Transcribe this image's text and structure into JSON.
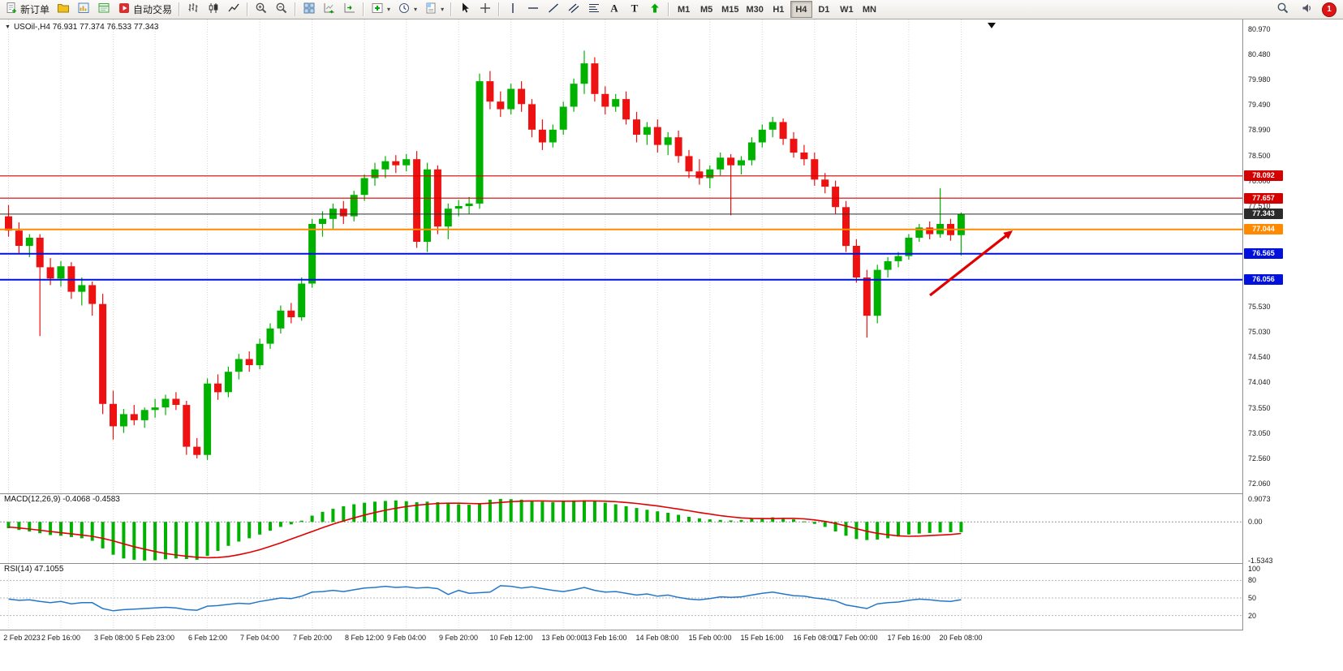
{
  "toolbar": {
    "new_order_label": "新订单",
    "auto_trading_label": "自动交易",
    "timeframes": [
      "M1",
      "M5",
      "M15",
      "M30",
      "H1",
      "H4",
      "D1",
      "W1",
      "MN"
    ],
    "active_timeframe": "H4",
    "notification_badge": "1"
  },
  "chart": {
    "title": "USOil-,H4  76.931 77.374 76.533 77.343",
    "price_axis_max": 80.97,
    "price_axis_step": 0.495,
    "price_axis_labels": [
      "80.970",
      "80.480",
      "79.980",
      "79.490",
      "78.990",
      "78.500",
      "78.000",
      "77.510",
      "77.010",
      "76.520",
      "76.030",
      "75.530",
      "75.030",
      "74.540",
      "74.040",
      "73.550",
      "73.050",
      "72.560",
      "72.060"
    ],
    "price_lines": [
      {
        "label": "78.092",
        "price": 78.092,
        "color": "#d40000",
        "width": 1.2
      },
      {
        "label": "77.657",
        "price": 77.657,
        "color": "#d40000",
        "width": 1.2
      },
      {
        "label": "77.343",
        "price": 77.343,
        "color": "#2b2b2b",
        "width": 1
      },
      {
        "label": "77.044",
        "price": 77.044,
        "color": "#ff8a00",
        "width": 2
      },
      {
        "label": "76.565",
        "price": 76.565,
        "color": "#0010dd",
        "width": 2
      },
      {
        "label": "76.056",
        "price": 76.056,
        "color": "#0010dd",
        "width": 2
      }
    ],
    "time_axis_labels": [
      "2 Feb 2023",
      "2 Feb 16:00",
      "3 Feb 08:00",
      "5 Feb 23:00",
      "6 Feb 12:00",
      "7 Feb 04:00",
      "7 Feb 20:00",
      "8 Feb 12:00",
      "9 Feb 04:00",
      "9 Feb 20:00",
      "10 Feb 12:00",
      "13 Feb 00:00",
      "13 Feb 16:00",
      "14 Feb 08:00",
      "15 Feb 00:00",
      "15 Feb 16:00",
      "16 Feb 08:00",
      "17 Feb 00:00",
      "17 Feb 16:00",
      "20 Feb 08:00"
    ],
    "up_color": "#00b200",
    "down_color": "#ee1111",
    "candles": [
      [
        77.3,
        77.52,
        76.9,
        77.02
      ],
      [
        77.02,
        77.18,
        76.58,
        76.72
      ],
      [
        76.72,
        76.95,
        76.5,
        76.88
      ],
      [
        76.88,
        76.95,
        74.95,
        76.3
      ],
      [
        76.3,
        76.48,
        75.95,
        76.08
      ],
      [
        76.08,
        76.42,
        75.92,
        76.32
      ],
      [
        76.32,
        76.4,
        75.68,
        75.82
      ],
      [
        75.82,
        76.1,
        75.55,
        75.95
      ],
      [
        75.95,
        76.02,
        75.35,
        75.58
      ],
      [
        75.58,
        75.78,
        73.42,
        73.62
      ],
      [
        73.62,
        73.88,
        72.92,
        73.18
      ],
      [
        73.18,
        73.52,
        73.05,
        73.42
      ],
      [
        73.42,
        73.6,
        73.2,
        73.3
      ],
      [
        73.3,
        73.55,
        73.15,
        73.5
      ],
      [
        73.5,
        73.72,
        73.35,
        73.55
      ],
      [
        73.55,
        73.8,
        73.4,
        73.72
      ],
      [
        73.72,
        73.85,
        73.5,
        73.6
      ],
      [
        73.6,
        73.68,
        72.62,
        72.78
      ],
      [
        72.78,
        72.95,
        72.55,
        72.62
      ],
      [
        72.62,
        74.12,
        72.52,
        74.02
      ],
      [
        74.02,
        74.2,
        73.7,
        73.85
      ],
      [
        73.85,
        74.35,
        73.75,
        74.25
      ],
      [
        74.25,
        74.6,
        74.1,
        74.5
      ],
      [
        74.5,
        74.65,
        74.25,
        74.38
      ],
      [
        74.38,
        74.9,
        74.3,
        74.8
      ],
      [
        74.8,
        75.2,
        74.7,
        75.1
      ],
      [
        75.1,
        75.55,
        75.0,
        75.45
      ],
      [
        75.45,
        75.6,
        75.2,
        75.32
      ],
      [
        75.32,
        76.1,
        75.25,
        75.98
      ],
      [
        75.98,
        77.25,
        75.9,
        77.15
      ],
      [
        77.15,
        77.4,
        76.9,
        77.25
      ],
      [
        77.25,
        77.55,
        77.05,
        77.45
      ],
      [
        77.45,
        77.6,
        77.15,
        77.3
      ],
      [
        77.3,
        77.8,
        77.2,
        77.72
      ],
      [
        77.72,
        78.12,
        77.6,
        78.05
      ],
      [
        78.05,
        78.35,
        77.9,
        78.22
      ],
      [
        78.22,
        78.48,
        78.05,
        78.38
      ],
      [
        78.38,
        78.5,
        78.15,
        78.3
      ],
      [
        78.3,
        78.52,
        78.18,
        78.42
      ],
      [
        78.42,
        78.58,
        76.68,
        76.8
      ],
      [
        76.8,
        78.35,
        76.6,
        78.22
      ],
      [
        78.22,
        78.3,
        76.95,
        77.1
      ],
      [
        77.1,
        77.55,
        76.85,
        77.45
      ],
      [
        77.45,
        77.62,
        77.3,
        77.5
      ],
      [
        77.5,
        77.68,
        77.35,
        77.55
      ],
      [
        77.55,
        80.1,
        77.45,
        79.95
      ],
      [
        79.95,
        80.15,
        79.4,
        79.55
      ],
      [
        79.55,
        79.75,
        79.25,
        79.4
      ],
      [
        79.4,
        79.9,
        79.3,
        79.8
      ],
      [
        79.8,
        79.95,
        79.35,
        79.5
      ],
      [
        79.5,
        79.6,
        78.85,
        79.0
      ],
      [
        79.0,
        79.2,
        78.6,
        78.75
      ],
      [
        78.75,
        79.1,
        78.65,
        79.0
      ],
      [
        79.0,
        79.55,
        78.9,
        79.45
      ],
      [
        79.45,
        80.0,
        79.35,
        79.9
      ],
      [
        79.9,
        80.55,
        79.7,
        80.3
      ],
      [
        80.3,
        80.42,
        79.55,
        79.7
      ],
      [
        79.7,
        79.85,
        79.3,
        79.45
      ],
      [
        79.45,
        79.7,
        79.35,
        79.6
      ],
      [
        79.6,
        79.75,
        79.1,
        79.2
      ],
      [
        79.2,
        79.35,
        78.75,
        78.9
      ],
      [
        78.9,
        79.15,
        78.7,
        79.05
      ],
      [
        79.05,
        79.2,
        78.55,
        78.7
      ],
      [
        78.7,
        78.95,
        78.5,
        78.85
      ],
      [
        78.85,
        78.98,
        78.35,
        78.48
      ],
      [
        78.48,
        78.6,
        78.05,
        78.18
      ],
      [
        78.18,
        78.42,
        77.92,
        78.05
      ],
      [
        78.05,
        78.3,
        77.85,
        78.22
      ],
      [
        78.22,
        78.55,
        78.1,
        78.45
      ],
      [
        78.45,
        78.52,
        77.32,
        78.3
      ],
      [
        78.3,
        78.48,
        78.12,
        78.4
      ],
      [
        78.4,
        78.85,
        78.3,
        78.75
      ],
      [
        78.75,
        79.1,
        78.65,
        79.0
      ],
      [
        79.0,
        79.25,
        78.85,
        79.15
      ],
      [
        79.15,
        79.22,
        78.7,
        78.82
      ],
      [
        78.82,
        78.95,
        78.45,
        78.55
      ],
      [
        78.55,
        78.7,
        78.3,
        78.42
      ],
      [
        78.42,
        78.55,
        77.9,
        78.02
      ],
      [
        78.02,
        78.15,
        77.75,
        77.88
      ],
      [
        77.88,
        78.0,
        77.35,
        77.48
      ],
      [
        77.48,
        77.6,
        76.6,
        76.72
      ],
      [
        76.72,
        76.85,
        76.0,
        76.1
      ],
      [
        76.1,
        76.25,
        74.92,
        75.35
      ],
      [
        75.35,
        76.35,
        75.2,
        76.25
      ],
      [
        76.25,
        76.5,
        76.1,
        76.42
      ],
      [
        76.42,
        76.6,
        76.3,
        76.52
      ],
      [
        76.52,
        76.95,
        76.45,
        76.88
      ],
      [
        76.88,
        77.15,
        76.8,
        77.08
      ],
      [
        77.08,
        77.2,
        76.85,
        76.95
      ],
      [
        76.95,
        77.85,
        76.88,
        77.15
      ],
      [
        77.15,
        77.25,
        76.82,
        76.93
      ],
      [
        76.931,
        77.374,
        76.533,
        77.343
      ]
    ],
    "annotation_arrow": {
      "from": [
        1146,
        364
      ],
      "to": [
        1248,
        284
      ],
      "color": "#e00000"
    }
  },
  "macd": {
    "label": "MACD(12,26,9) -0.4068 -0.4583",
    "scale_labels": [
      "0.9073",
      "0.00",
      "-1.5343"
    ],
    "scale_values": [
      0.9073,
      0,
      -1.5343
    ],
    "histogram_color": "#00b200",
    "signal_color": "#e00000",
    "histogram": [
      -0.25,
      -0.32,
      -0.38,
      -0.45,
      -0.52,
      -0.55,
      -0.6,
      -0.65,
      -0.75,
      -1.05,
      -1.3,
      -1.45,
      -1.5,
      -1.53,
      -1.52,
      -1.48,
      -1.45,
      -1.47,
      -1.5,
      -1.35,
      -1.15,
      -0.95,
      -0.78,
      -0.65,
      -0.5,
      -0.35,
      -0.2,
      -0.1,
      0.05,
      0.25,
      0.4,
      0.52,
      0.62,
      0.7,
      0.76,
      0.8,
      0.83,
      0.85,
      0.82,
      0.78,
      0.8,
      0.78,
      0.72,
      0.7,
      0.68,
      0.74,
      0.88,
      0.91,
      0.9,
      0.88,
      0.84,
      0.8,
      0.78,
      0.8,
      0.85,
      0.86,
      0.82,
      0.76,
      0.7,
      0.62,
      0.55,
      0.48,
      0.42,
      0.36,
      0.28,
      0.2,
      0.14,
      0.1,
      0.08,
      0.06,
      0.08,
      0.12,
      0.16,
      0.18,
      0.16,
      0.1,
      0.02,
      -0.08,
      -0.2,
      -0.38,
      -0.55,
      -0.68,
      -0.72,
      -0.7,
      -0.65,
      -0.58,
      -0.5,
      -0.46,
      -0.44,
      -0.42,
      -0.41,
      -0.4068
    ],
    "signal": [
      -0.2,
      -0.24,
      -0.28,
      -0.33,
      -0.38,
      -0.43,
      -0.47,
      -0.52,
      -0.57,
      -0.65,
      -0.75,
      -0.87,
      -0.98,
      -1.08,
      -1.17,
      -1.25,
      -1.31,
      -1.36,
      -1.4,
      -1.42,
      -1.41,
      -1.37,
      -1.3,
      -1.21,
      -1.1,
      -0.97,
      -0.83,
      -0.68,
      -0.53,
      -0.38,
      -0.23,
      -0.09,
      0.04,
      0.16,
      0.27,
      0.37,
      0.46,
      0.54,
      0.61,
      0.66,
      0.7,
      0.73,
      0.74,
      0.74,
      0.73,
      0.72,
      0.74,
      0.77,
      0.8,
      0.82,
      0.83,
      0.83,
      0.82,
      0.82,
      0.82,
      0.83,
      0.83,
      0.82,
      0.8,
      0.77,
      0.73,
      0.68,
      0.63,
      0.57,
      0.51,
      0.44,
      0.37,
      0.31,
      0.25,
      0.2,
      0.16,
      0.14,
      0.13,
      0.13,
      0.14,
      0.14,
      0.12,
      0.08,
      0.02,
      -0.06,
      -0.16,
      -0.27,
      -0.37,
      -0.45,
      -0.51,
      -0.55,
      -0.57,
      -0.56,
      -0.54,
      -0.52,
      -0.5,
      -0.4583
    ]
  },
  "rsi": {
    "label": "RSI(14) 47.1055",
    "scale_labels": [
      "100",
      "80",
      "50",
      "20"
    ],
    "scale_values": [
      100,
      80,
      50,
      20
    ],
    "levels": [
      80,
      50,
      20
    ],
    "line_color": "#2277cc",
    "values": [
      48,
      46,
      47,
      44,
      42,
      44,
      40,
      42,
      42,
      32,
      28,
      30,
      31,
      32,
      33,
      34,
      33,
      30,
      29,
      36,
      37,
      39,
      41,
      40,
      44,
      47,
      50,
      49,
      53,
      60,
      61,
      63,
      61,
      64,
      67,
      68,
      70,
      68,
      69,
      67,
      68,
      66,
      56,
      63,
      58,
      59,
      60,
      71,
      70,
      67,
      69,
      66,
      63,
      61,
      64,
      68,
      63,
      60,
      61,
      58,
      55,
      57,
      53,
      55,
      51,
      48,
      47,
      49,
      52,
      51,
      52,
      55,
      58,
      60,
      57,
      54,
      53,
      50,
      48,
      45,
      38,
      35,
      32,
      40,
      42,
      43,
      46,
      48,
      47,
      45,
      44,
      47.1055
    ]
  }
}
